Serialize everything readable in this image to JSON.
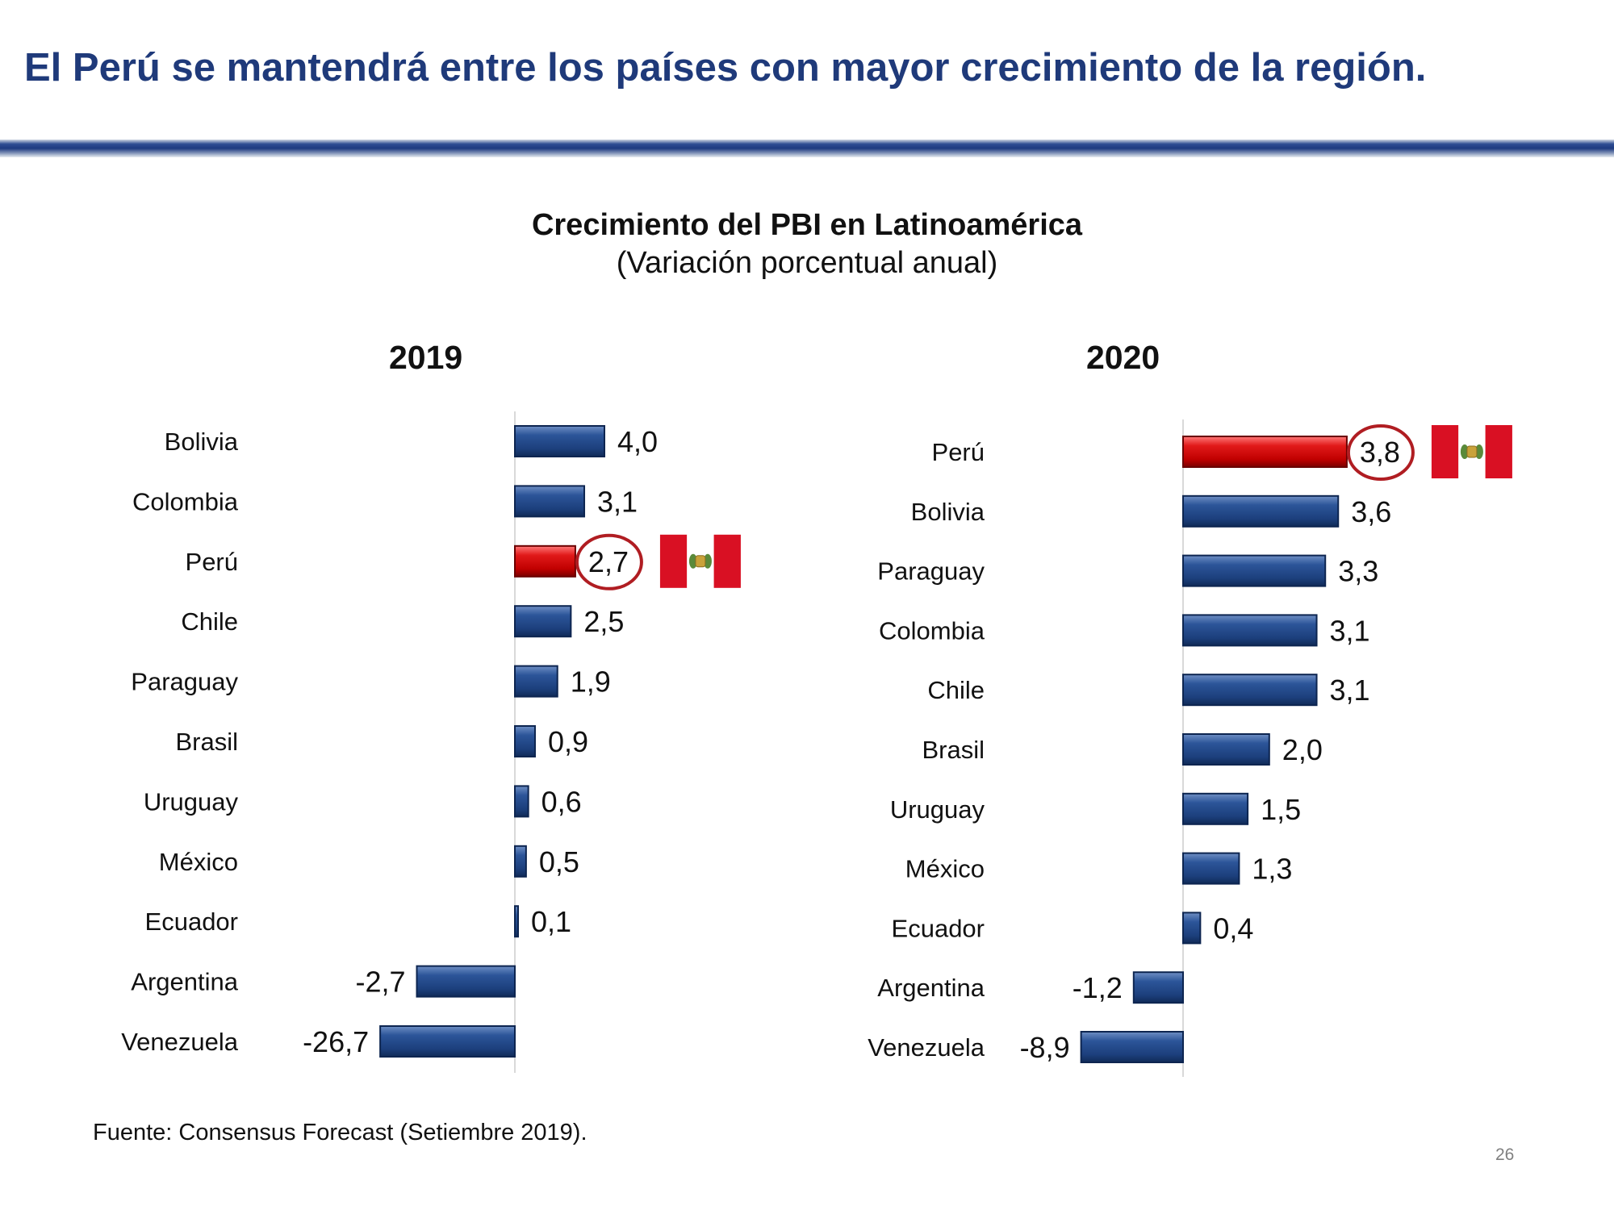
{
  "slide": {
    "title": "El Perú se mantendrá entre los países con mayor crecimiento de la región.",
    "source": "Fuente: Consensus Forecast (Setiembre 2019).",
    "page_number": "26"
  },
  "colors": {
    "title": "#1f3a7a",
    "bar": "#1f4584",
    "highlight_bar": "#cc0000",
    "circle": "#b01d22",
    "flag_red": "#d91023"
  },
  "chart_data": [
    {
      "type": "bar",
      "orientation": "horizontal",
      "title": "Crecimiento del PBI en Latinoamérica",
      "subtitle": "(Variación porcentual anual)",
      "panel_title": "2019",
      "categories": [
        "Bolivia",
        "Colombia",
        "Perú",
        "Chile",
        "Paraguay",
        "Brasil",
        "Uruguay",
        "México",
        "Ecuador",
        "Argentina",
        "Venezuela"
      ],
      "values": [
        4.0,
        3.1,
        2.7,
        2.5,
        1.9,
        0.9,
        0.6,
        0.5,
        0.1,
        -2.7,
        -26.7
      ],
      "value_labels": [
        "4,0",
        "3,1",
        "2,7",
        "2,5",
        "1,9",
        "0,9",
        "0,6",
        "0,5",
        "0,1",
        "-2,7",
        "-26,7"
      ],
      "highlight": "Perú"
    },
    {
      "type": "bar",
      "orientation": "horizontal",
      "title": "Crecimiento del PBI en Latinoamérica",
      "subtitle": "(Variación porcentual anual)",
      "panel_title": "2020",
      "categories": [
        "Perú",
        "Bolivia",
        "Paraguay",
        "Colombia",
        "Chile",
        "Brasil",
        "Uruguay",
        "México",
        "Ecuador",
        "Argentina",
        "Venezuela"
      ],
      "values": [
        3.8,
        3.6,
        3.3,
        3.1,
        3.1,
        2.0,
        1.5,
        1.3,
        0.4,
        -1.2,
        -8.9
      ],
      "value_labels": [
        "3,8",
        "3,6",
        "3,3",
        "3,1",
        "3,1",
        "2,0",
        "1,5",
        "1,3",
        "0,4",
        "-1,2",
        "-8,9"
      ],
      "highlight": "Perú"
    }
  ]
}
